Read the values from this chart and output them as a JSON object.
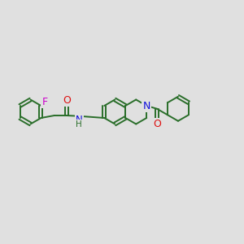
{
  "background_color": "#e0e0e0",
  "bond_color": "#2a6e2a",
  "N_color": "#1010dd",
  "O_color": "#dd1010",
  "F_color": "#cc00cc",
  "line_width": 1.4,
  "font_size": 8.5,
  "figsize": [
    3.0,
    3.0
  ],
  "dpi": 100,
  "xlim": [
    0,
    12
  ],
  "ylim": [
    0,
    10
  ]
}
